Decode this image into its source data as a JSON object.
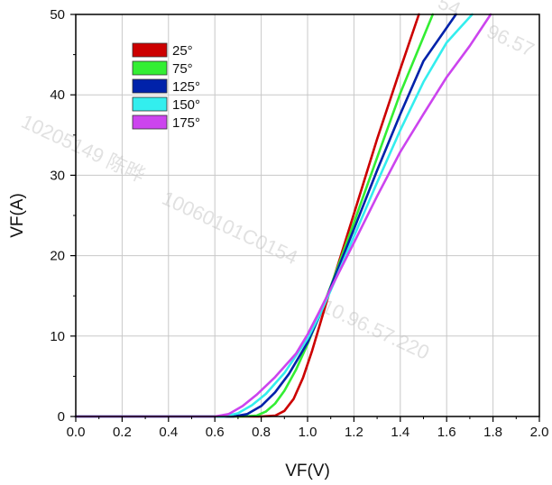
{
  "chart_data": {
    "type": "line",
    "xlabel": "VF(V)",
    "ylabel": "VF(A)",
    "xlim": [
      0,
      2.0
    ],
    "ylim": [
      0,
      50
    ],
    "x_ticks": [
      "0.0",
      "0.2",
      "0.4",
      "0.6",
      "0.8",
      "1.0",
      "1.2",
      "1.4",
      "1.6",
      "1.8",
      "2.0"
    ],
    "y_ticks": [
      "0",
      "10",
      "20",
      "30",
      "40",
      "50"
    ],
    "grid": true,
    "legend_position": "top-left",
    "series": [
      {
        "name": "25°",
        "color": "#cc0000",
        "points": [
          [
            0,
            0
          ],
          [
            0.8,
            0
          ],
          [
            0.86,
            0.1
          ],
          [
            0.9,
            0.7
          ],
          [
            0.94,
            2.2
          ],
          [
            0.98,
            4.8
          ],
          [
            1.02,
            8.2
          ],
          [
            1.06,
            12.1
          ],
          [
            1.1,
            16.0
          ],
          [
            1.2,
            25.2
          ],
          [
            1.3,
            34.5
          ],
          [
            1.4,
            43.2
          ],
          [
            1.48,
            50
          ]
        ]
      },
      {
        "name": "75°",
        "color": "#33ee33",
        "points": [
          [
            0,
            0
          ],
          [
            0.72,
            0
          ],
          [
            0.78,
            0.1
          ],
          [
            0.82,
            0.6
          ],
          [
            0.86,
            1.6
          ],
          [
            0.9,
            3.2
          ],
          [
            0.95,
            5.8
          ],
          [
            1.0,
            9.0
          ],
          [
            1.05,
            12.5
          ],
          [
            1.1,
            16.2
          ],
          [
            1.2,
            24.1
          ],
          [
            1.3,
            32.2
          ],
          [
            1.4,
            40.2
          ],
          [
            1.54,
            50
          ]
        ]
      },
      {
        "name": "125°",
        "color": "#0022aa",
        "points": [
          [
            0,
            0
          ],
          [
            0.68,
            0
          ],
          [
            0.74,
            0.3
          ],
          [
            0.8,
            1.3
          ],
          [
            0.86,
            3.0
          ],
          [
            0.92,
            5.3
          ],
          [
            1.0,
            9.2
          ],
          [
            1.05,
            12.4
          ],
          [
            1.1,
            16.1
          ],
          [
            1.2,
            23.3
          ],
          [
            1.3,
            30.6
          ],
          [
            1.4,
            37.6
          ],
          [
            1.5,
            44.2
          ],
          [
            1.64,
            50
          ]
        ]
      },
      {
        "name": "150°",
        "color": "#33eeee",
        "points": [
          [
            0,
            0
          ],
          [
            0.64,
            0
          ],
          [
            0.7,
            0.4
          ],
          [
            0.76,
            1.4
          ],
          [
            0.82,
            2.8
          ],
          [
            0.9,
            5.4
          ],
          [
            1.0,
            9.7
          ],
          [
            1.05,
            12.5
          ],
          [
            1.1,
            15.7
          ],
          [
            1.2,
            22.4
          ],
          [
            1.3,
            29.1
          ],
          [
            1.4,
            35.6
          ],
          [
            1.5,
            41.6
          ],
          [
            1.6,
            46.5
          ],
          [
            1.71,
            50
          ]
        ]
      },
      {
        "name": "175°",
        "color": "#cc44ee",
        "points": [
          [
            0,
            0
          ],
          [
            0.6,
            0
          ],
          [
            0.66,
            0.3
          ],
          [
            0.72,
            1.3
          ],
          [
            0.78,
            2.7
          ],
          [
            0.86,
            4.9
          ],
          [
            0.95,
            7.8
          ],
          [
            1.0,
            10.2
          ],
          [
            1.05,
            13.0
          ],
          [
            1.1,
            15.9
          ],
          [
            1.2,
            21.6
          ],
          [
            1.3,
            27.4
          ],
          [
            1.4,
            32.9
          ],
          [
            1.5,
            37.6
          ],
          [
            1.6,
            42.2
          ],
          [
            1.7,
            46.1
          ],
          [
            1.79,
            50
          ]
        ]
      }
    ]
  },
  "watermarks": [
    "10205149 陈晔",
    "10060101C0154",
    "10.96.57.220",
    "54",
    "96.57"
  ]
}
